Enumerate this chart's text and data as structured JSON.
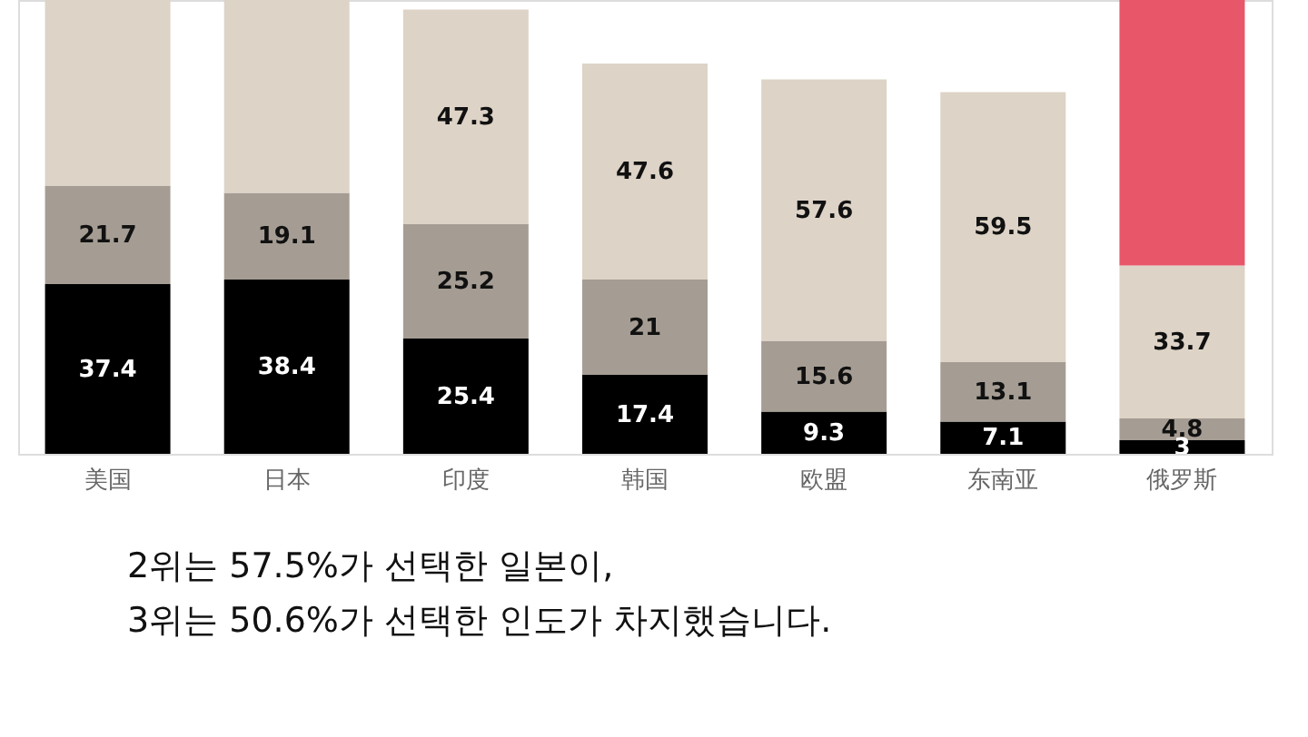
{
  "chart_data": {
    "type": "bar",
    "stacked": true,
    "categories": [
      "美国",
      "日本",
      "印度",
      "韩国",
      "欧盟",
      "东南亚",
      "俄罗斯"
    ],
    "series": [
      {
        "color": "#000000",
        "values": [
          37.4,
          38.4,
          25.4,
          17.4,
          9.3,
          7.1,
          3
        ]
      },
      {
        "color": "#a59d93",
        "values": [
          21.7,
          19.1,
          25.2,
          21,
          15.6,
          13.1,
          4.8
        ]
      },
      {
        "color": "#ddd3c6",
        "values": [
          40.9,
          42.5,
          47.3,
          47.6,
          57.6,
          59.5,
          33.7
        ],
        "value_labels": [
          null,
          null,
          "47.3",
          "47.6",
          "57.6",
          "59.5",
          "33.7"
        ]
      },
      {
        "color": "#e8566a",
        "values": [
          null,
          null,
          null,
          null,
          null,
          null,
          58.5
        ],
        "value_labels": [
          null,
          null,
          null,
          null,
          null,
          null,
          null
        ]
      }
    ],
    "data_labels": true,
    "ylim": [
      0,
      100
    ],
    "tick_labels": "x",
    "annotations": [
      "2위는 57.5%가 선택한 일본이,",
      "3위는 50.6%가 선택한 인도가 차지했습니다."
    ]
  }
}
